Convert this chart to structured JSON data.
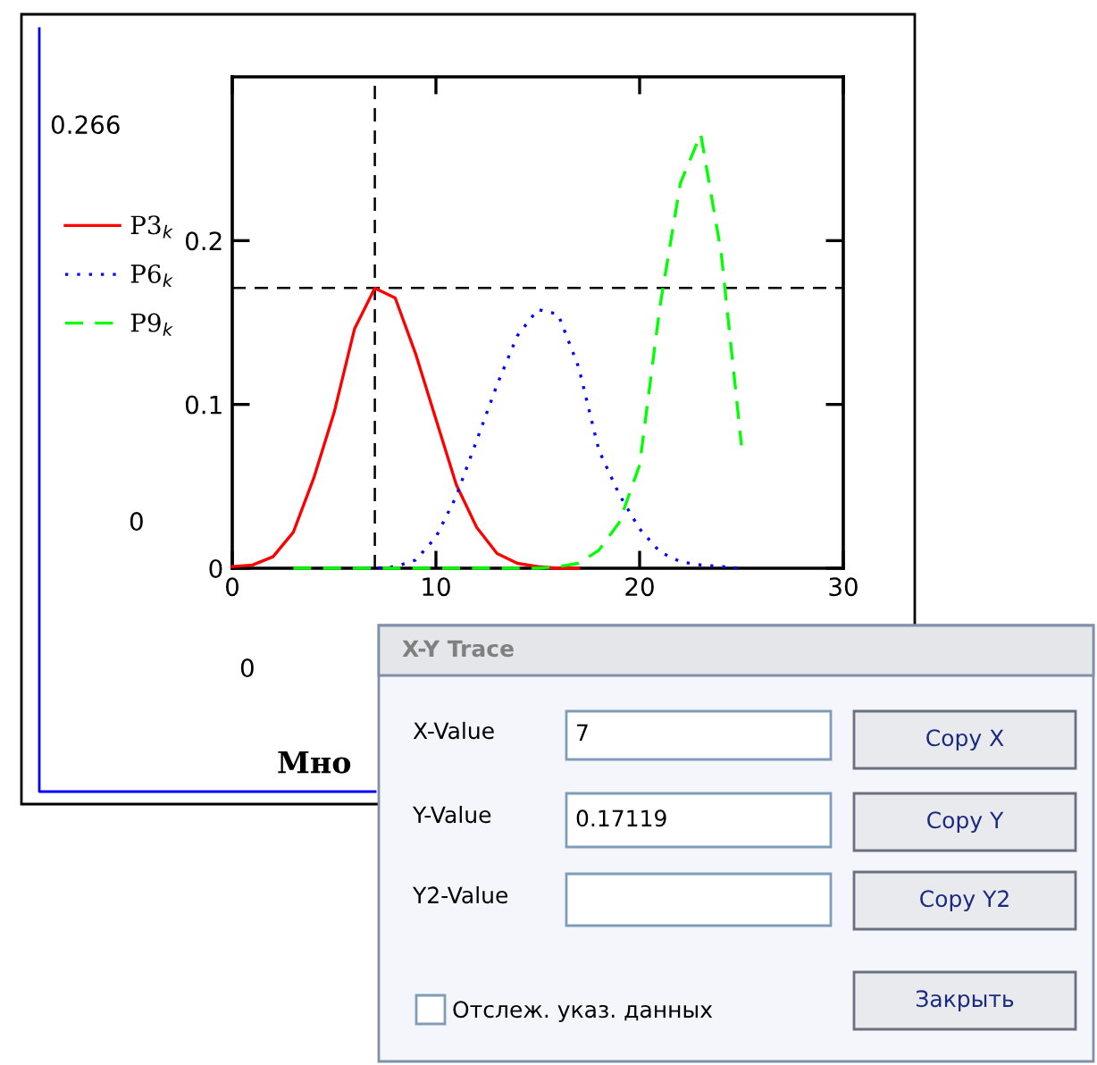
{
  "chart_data": {
    "type": "line",
    "x": [
      0,
      1,
      2,
      3,
      4,
      5,
      6,
      7,
      8,
      9,
      10,
      11,
      12,
      13,
      14,
      15,
      16,
      17,
      18,
      19,
      20,
      21,
      22,
      23,
      24,
      25
    ],
    "series": [
      {
        "name": "P3$_{k}$",
        "color": "#ff0000",
        "line_style": "solid",
        "values": [
          0.001,
          0.002,
          0.007,
          0.022,
          0.055,
          0.095,
          0.146,
          0.171,
          0.165,
          0.131,
          0.091,
          0.051,
          0.025,
          0.009,
          0.003,
          0.001,
          0,
          0,
          null,
          null,
          null,
          null,
          null,
          null,
          null,
          null
        ]
      },
      {
        "name": "P6$_{k}$",
        "color": "#0000ff",
        "line_style": "dotted",
        "values": [
          null,
          null,
          null,
          null,
          null,
          null,
          0,
          0,
          0.001,
          0.005,
          0.019,
          0.044,
          0.078,
          0.112,
          0.142,
          0.158,
          0.155,
          0.123,
          0.072,
          0.045,
          0.024,
          0.01,
          0.004,
          0.002,
          0.001,
          0
        ]
      },
      {
        "name": "P9$_{k}$",
        "color": "#00ff00",
        "line_style": "dashed",
        "values": [
          null,
          null,
          null,
          0,
          0,
          0,
          0,
          0,
          0,
          0,
          0,
          0,
          0,
          0,
          0,
          0,
          0.001,
          0.003,
          0.011,
          0.028,
          0.063,
          0.16,
          0.235,
          0.265,
          0.193,
          0.075
        ]
      }
    ],
    "xlim": [
      0,
      30
    ],
    "xticks": [
      0,
      10,
      20,
      30
    ],
    "ylim": [
      0,
      0.3
    ],
    "yticks": [
      0,
      0.1,
      0.2
    ],
    "ref_lines": [
      {
        "axis": "x",
        "value": 7,
        "color": "#000000",
        "line_style": "dashed"
      },
      {
        "axis": "y",
        "value": 0.17119,
        "color": "#000000",
        "line_style": "dashed"
      }
    ],
    "legend": "left",
    "grid": false,
    "marker": "none",
    "annotations": [
      "0.266",
      "0",
      "0",
      "Мно",
      "X-Y Trace",
      "X-Value",
      "7",
      "Y-Value",
      "0.17119",
      "Y2-Value",
      "Copy X",
      "Copy Y",
      "Copy Y2",
      "Закрыть",
      "Отслеж. указ. данных"
    ]
  }
}
